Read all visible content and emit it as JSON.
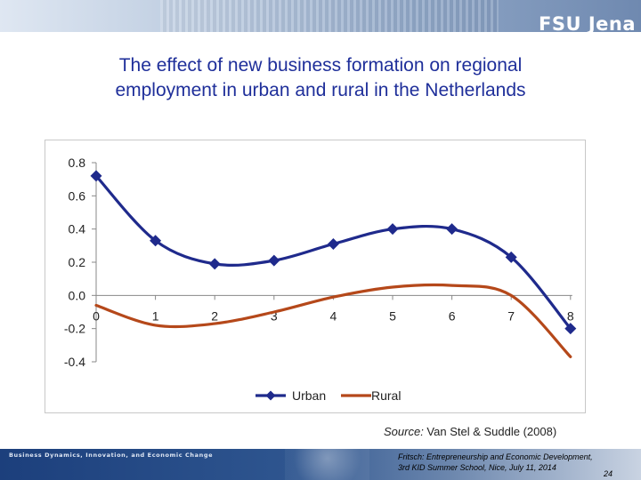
{
  "header": {
    "brand": "FSU Jena"
  },
  "title": {
    "line1": "The effect of new business formation on regional",
    "line2": "employment in urban and rural in the Netherlands"
  },
  "chart_data": {
    "type": "line",
    "x": [
      0,
      1,
      2,
      3,
      4,
      5,
      6,
      7,
      8
    ],
    "x_tick_labels": [
      "0",
      "1",
      "2",
      "3",
      "4",
      "5",
      "6",
      "7",
      "8"
    ],
    "y_tick_labels": [
      "0.8",
      "0.6",
      "0.4",
      "0.2",
      "0.0",
      "-0.2",
      "-0.4"
    ],
    "ylim": [
      -0.4,
      0.8
    ],
    "y_ticks": [
      0.8,
      0.6,
      0.4,
      0.2,
      0.0,
      -0.2,
      -0.4
    ],
    "grid": false,
    "legend_placement": "bottom",
    "series": [
      {
        "name": "Urban",
        "color": "#1f2a8c",
        "marker": "diamond",
        "values": [
          0.72,
          0.33,
          0.19,
          0.21,
          0.31,
          0.4,
          0.4,
          0.23,
          -0.2
        ]
      },
      {
        "name": "Rural",
        "color": "#b5481a",
        "marker": "none",
        "values": [
          -0.06,
          -0.18,
          -0.17,
          -0.1,
          -0.01,
          0.05,
          0.06,
          0.0,
          -0.37
        ]
      }
    ]
  },
  "source": {
    "label": "Source:",
    "text": " Van Stel & Suddle (2008)"
  },
  "footer": {
    "left": "Business Dynamics, Innovation, and Economic Change",
    "right_line1": "Fritsch: Entrepreneurship and Economic Development,",
    "right_line2": "3rd KID Summer School, Nice, July 11, 2014",
    "page": "24"
  }
}
